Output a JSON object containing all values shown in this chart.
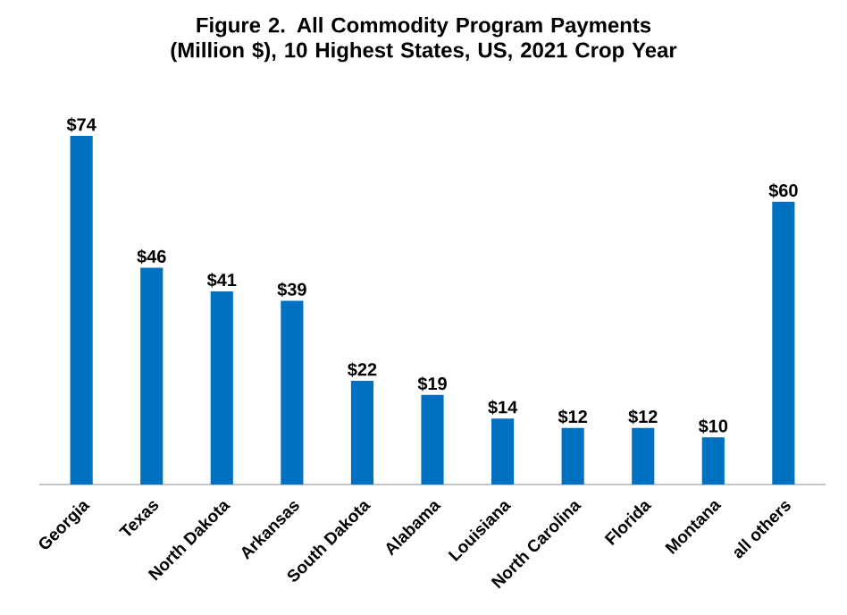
{
  "chart_data": {
    "type": "bar",
    "title": "Figure 2. All Commodity Program Payments (Million $), 10 Highest States, US, 2021 Crop Year",
    "categories": [
      "Georgia",
      "Texas",
      "North Dakota",
      "Arkansas",
      "South Dakota",
      "Alabama",
      "Louisiana",
      "North Carolina",
      "Florida",
      "Montana",
      "all others"
    ],
    "values": [
      74,
      46,
      41,
      39,
      22,
      19,
      14,
      12,
      12,
      10,
      60
    ],
    "value_labels": [
      "$74",
      "$46",
      "$41",
      "$39",
      "$22",
      "$19",
      "$14",
      "$12",
      "$12",
      "$10",
      "$60"
    ],
    "color": "#0070c0"
  }
}
